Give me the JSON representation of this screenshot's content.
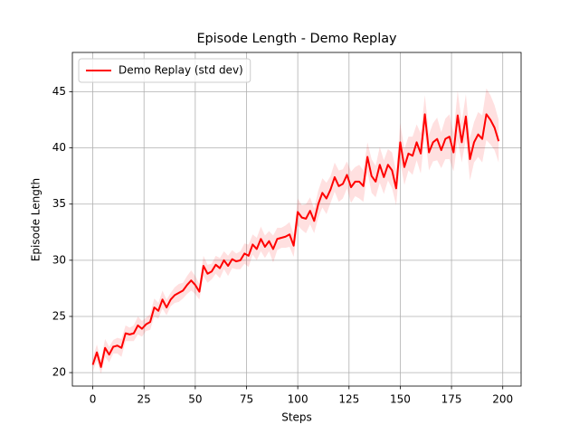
{
  "chart_data": {
    "type": "line",
    "title": "Episode Length - Demo Replay",
    "x_label": "Steps",
    "y_label": "Episode Length",
    "x": [
      0,
      2,
      4,
      6,
      8,
      10,
      12,
      14,
      16,
      18,
      20,
      22,
      24,
      26,
      28,
      30,
      32,
      34,
      36,
      38,
      40,
      42,
      44,
      46,
      48,
      50,
      52,
      54,
      56,
      58,
      60,
      62,
      64,
      66,
      68,
      70,
      72,
      74,
      76,
      78,
      80,
      82,
      84,
      86,
      88,
      90,
      92,
      94,
      96,
      98,
      100,
      102,
      104,
      106,
      108,
      110,
      112,
      114,
      116,
      118,
      120,
      122,
      124,
      126,
      128,
      130,
      132,
      134,
      136,
      138,
      140,
      142,
      144,
      146,
      148,
      150,
      152,
      154,
      156,
      158,
      160,
      162,
      164,
      166,
      168,
      170,
      172,
      174,
      176,
      178,
      180,
      182,
      184,
      186,
      188,
      190,
      192,
      194,
      196,
      198
    ],
    "series": [
      {
        "name": "Demo Replay (std dev)",
        "color": "#ff0000",
        "values": [
          20.7,
          21.8,
          20.5,
          22.2,
          21.6,
          22.3,
          22.4,
          22.2,
          23.5,
          23.4,
          23.5,
          24.2,
          23.9,
          24.3,
          24.5,
          25.8,
          25.5,
          26.5,
          25.8,
          26.5,
          26.9,
          27.1,
          27.3,
          27.8,
          28.2,
          27.8,
          27.2,
          29.5,
          28.8,
          29.0,
          29.6,
          29.3,
          30.0,
          29.5,
          30.1,
          29.9,
          30.0,
          30.6,
          30.4,
          31.4,
          31.0,
          31.9,
          31.2,
          31.7,
          31.0,
          31.9,
          32.0,
          32.1,
          32.3,
          31.3,
          34.3,
          33.8,
          33.7,
          34.4,
          33.5,
          35.0,
          36.0,
          35.5,
          36.3,
          37.4,
          36.6,
          36.8,
          37.6,
          36.5,
          37.0,
          37.0,
          36.6,
          39.2,
          37.5,
          37.0,
          38.5,
          37.4,
          38.5,
          38.0,
          36.4,
          40.5,
          38.3,
          39.5,
          39.3,
          40.5,
          39.5,
          43.0,
          39.6,
          40.5,
          40.8,
          39.8,
          40.8,
          41.0,
          39.6,
          42.9,
          40.5,
          42.8,
          39.0,
          40.5,
          41.2,
          40.8,
          43.0,
          42.5,
          41.8,
          40.6
        ],
        "std": [
          0.6,
          0.7,
          0.6,
          0.8,
          0.7,
          0.6,
          0.7,
          0.8,
          0.7,
          0.6,
          0.7,
          0.8,
          0.7,
          0.6,
          0.7,
          0.8,
          0.7,
          0.8,
          0.7,
          0.6,
          0.7,
          0.8,
          0.7,
          0.8,
          0.9,
          0.8,
          0.7,
          0.9,
          0.8,
          0.7,
          0.8,
          0.9,
          0.8,
          0.9,
          0.8,
          0.7,
          0.8,
          0.9,
          1.0,
          0.9,
          1.0,
          1.1,
          1.0,
          0.9,
          1.2,
          1.0,
          0.9,
          1.0,
          1.1,
          1.0,
          1.2,
          1.1,
          1.3,
          1.2,
          1.1,
          1.2,
          1.3,
          1.4,
          1.2,
          1.3,
          1.4,
          1.3,
          1.2,
          1.4,
          1.3,
          1.5,
          1.4,
          1.3,
          1.5,
          1.4,
          1.6,
          1.5,
          1.4,
          1.6,
          1.5,
          1.7,
          1.6,
          1.5,
          1.7,
          1.6,
          1.8,
          1.7,
          1.6,
          1.7,
          1.9,
          1.6,
          1.8,
          2.0,
          1.7,
          2.2,
          1.8,
          2.0,
          1.9,
          1.8,
          2.0,
          2.1,
          2.3,
          2.2,
          2.0,
          1.9
        ]
      }
    ],
    "xlim": [
      -9.95,
      208.95
    ],
    "ylim": [
      18.8,
      48.5
    ],
    "xticks": [
      0,
      25,
      50,
      75,
      100,
      125,
      150,
      175,
      200
    ],
    "yticks": [
      20,
      25,
      30,
      35,
      40,
      45
    ],
    "grid": true,
    "legend": "upper left"
  }
}
